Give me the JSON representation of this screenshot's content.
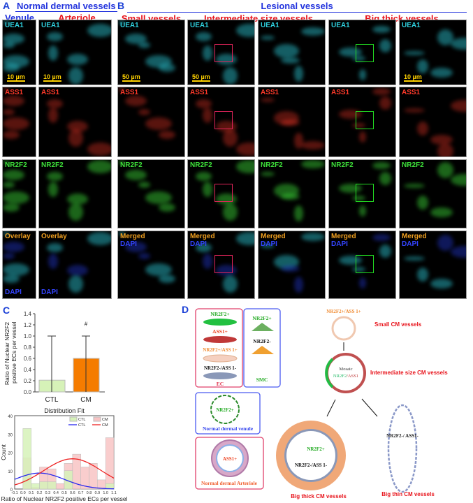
{
  "panel_a": {
    "letter": "A",
    "title": "Normal dermal vessels",
    "columns": [
      "Venule",
      "Arteriole"
    ],
    "rows": [
      "UEA1",
      "ASS1",
      "NR2F2",
      "Overlay"
    ],
    "dapi": "DAPI",
    "scale": "10 µm"
  },
  "panel_b": {
    "letter": "B",
    "title": "Lesional vessels",
    "groups": [
      "Small vessels",
      "Intermediate size vessels",
      "Big thick vessels"
    ],
    "rows": [
      "UEA1",
      "ASS1",
      "NR2F2",
      "Merged"
    ],
    "dapi": "DAPI",
    "scales": [
      "50 µm",
      "50 µm",
      "",
      "",
      "10 µm"
    ]
  },
  "colors": {
    "UEA1": "#2fd0de",
    "ASS1": "#ff3a2a",
    "NR2F2": "#3ee03a",
    "Merged": "#f0a020",
    "Overlay": "#f0a020",
    "roi_red": "#e0245a",
    "roi_green": "#22dd22"
  },
  "panel_c": {
    "letter": "C"
  },
  "chart_data": [
    {
      "type": "bar",
      "categories": [
        "CTL",
        "CM"
      ],
      "values": [
        0.21,
        0.6
      ],
      "error_range": [
        [
          0,
          1.0
        ],
        [
          0,
          1.0
        ]
      ],
      "ylabel": "Ratio of Nuclear NR2F2 positive ECs per vessel",
      "ylim": [
        0,
        1.4
      ],
      "yticks": [
        "0.0",
        "0.2",
        "0.4",
        "0.6",
        "0.8",
        "1.0",
        "1.2",
        "1.4"
      ],
      "annotation": "#",
      "colors": [
        "#d6f2b8",
        "#f57c00"
      ]
    },
    {
      "type": "bar",
      "title": "Distribution Fit",
      "xlabel": "Ratio of Nuclear NR2F2 positive ECs per vessel",
      "ylabel": "Count",
      "ylim": [
        0,
        40
      ],
      "xlim": [
        -0.1,
        1.1
      ],
      "yticks": [
        "0",
        "10",
        "20",
        "30",
        "40"
      ],
      "xticks": [
        "-0.1",
        "0.0",
        "0.1",
        "0.2",
        "0.3",
        "0.4",
        "0.5",
        "0.6",
        "0.7",
        "0.8",
        "0.9",
        "1.0",
        "1.1"
      ],
      "bins": [
        0.0,
        0.1,
        0.2,
        0.3,
        0.4,
        0.5,
        0.6,
        0.7,
        0.8,
        0.9,
        1.0
      ],
      "series": [
        {
          "name": "CTL",
          "values": [
            33,
            3,
            4,
            4,
            0,
            10,
            0,
            0,
            0,
            0,
            3
          ],
          "color": "#d6f2b8"
        },
        {
          "name": "CM",
          "values": [
            17,
            1,
            12,
            11,
            3,
            14,
            19,
            12,
            14,
            5,
            28
          ],
          "color": "#f8c4c4"
        }
      ],
      "fits": [
        {
          "name": "CTL",
          "mean": 0.2,
          "sd": 0.3,
          "peak": 8.7,
          "color": "#2a2aee"
        },
        {
          "name": "CM",
          "mean": 0.6,
          "sd": 0.35,
          "peak": 16.5,
          "color": "#ee2222"
        }
      ],
      "legend": "top-right"
    }
  ],
  "panel_d": {
    "letter": "D",
    "ec_cells": [
      "NR2F2+",
      "ASS1+",
      "NR2F2+/ASS 1+",
      "NR2F2-/ASS 1-"
    ],
    "ec_label": "EC",
    "smc_cells": [
      "NR2F2+",
      "NR2F2-"
    ],
    "smc_label": "SMC",
    "venule_text": "NR2F2+",
    "venule_label": "Normal dermal   venule",
    "arteriole_text": "ASS1+",
    "arteriole_label": "Normal dermal   Arteriole",
    "small_top": "NR2F2+/ASS 1+",
    "small_label": "Small CM vessels",
    "mosaic": "Mosaic",
    "mosaic_a": "NR2F2",
    "mosaic_b": "/ASS1",
    "inter_label": "Intermediate size CM vessels",
    "thick_pos": "NR2F2+",
    "thick_neg": "NR2F2-/ASS 1-",
    "thick_label": "Big thick CM vessels",
    "thin_text": "NR2F2-/ ASS1-",
    "thin_label": "Big thin CM vessels"
  }
}
